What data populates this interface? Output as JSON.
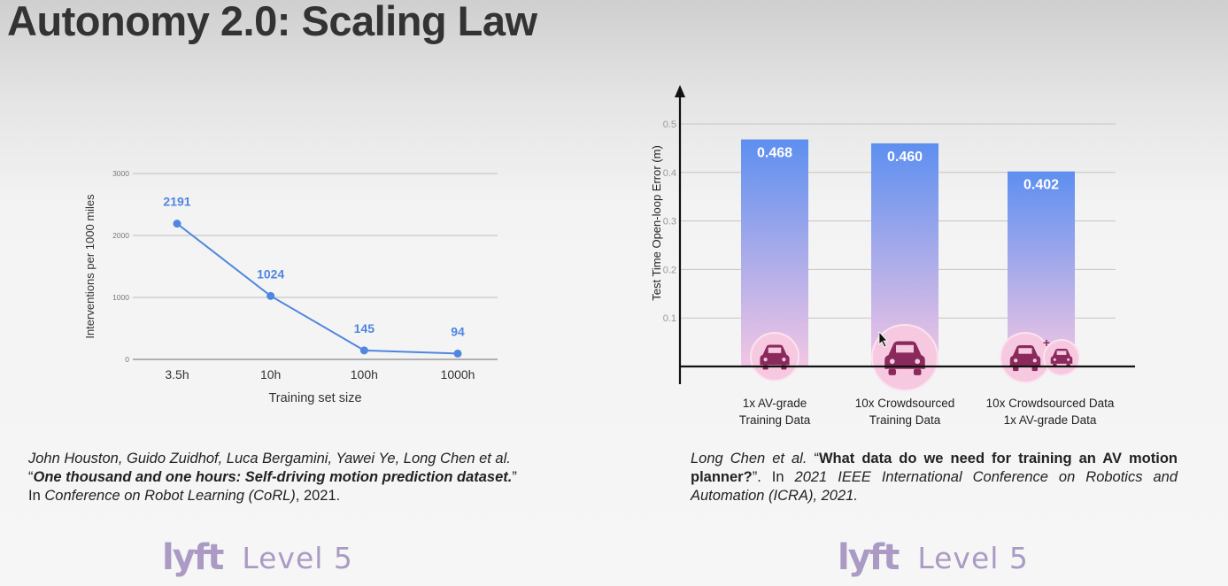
{
  "title": "Autonomy 2.0: Scaling Law",
  "chart_data": [
    {
      "type": "line",
      "title": "",
      "categories": [
        "3.5h",
        "10h",
        "100h",
        "1000h"
      ],
      "values": [
        2191,
        1024,
        145,
        94
      ],
      "data_labels": [
        "2191",
        "1024",
        "145",
        "94"
      ],
      "xlabel": "Training set size",
      "ylabel": "Interventions per 1000 miles",
      "ylim": [
        0,
        3000
      ],
      "yticks": [
        0,
        1000,
        2000,
        3000
      ],
      "grid": true,
      "color": "#4f86e0"
    },
    {
      "type": "bar",
      "title": "",
      "categories": [
        [
          "1x AV-grade",
          "Training Data"
        ],
        [
          "10x Crowdsourced",
          "Training Data"
        ],
        [
          "10x Crowdsourced Data",
          "1x AV-grade Data"
        ]
      ],
      "values": [
        0.468,
        0.46,
        0.402
      ],
      "data_labels": [
        "0.468",
        "0.460",
        "0.402"
      ],
      "xlabel": "",
      "ylabel": "Test Time Open-loop Error (m)",
      "ylim": [
        0,
        0.5
      ],
      "yticks": [
        0.1,
        0.2,
        0.3,
        0.4,
        0.5
      ],
      "ytick_labels": [
        "0.1",
        "0.2",
        "0.3",
        "0.4",
        "0.5"
      ],
      "grid": true,
      "bar_gradient": [
        "#5d8ff0",
        "#f2c6e4"
      ],
      "icons": [
        "car-icon",
        "car-icon",
        "car-plus-car-icon"
      ]
    }
  ],
  "citations": {
    "left": {
      "authors": "John Houston, Guido Zuidhof, Luca Bergamini, Yawei Ye, Long Chen et al.",
      "open_quote": "“",
      "paper_title": "One thousand and one hours: Self-driving motion prediction dataset.",
      "close_quote": "”",
      "venue_prefix": "In ",
      "venue": "Conference on Robot Learning (CoRL)",
      "venue_suffix": ", 2021."
    },
    "right": {
      "authors": "Long Chen et al. ",
      "open_quote": "“",
      "paper_title": "What data do we need for training an AV motion planner?",
      "close_quote": "”",
      "venue_prefix": ". In ",
      "venue": "2021 IEEE International Conference on Robotics and Automation (ICRA), 2021."
    }
  },
  "logos": {
    "left": {
      "brand": "lyft",
      "text": "Level 5"
    },
    "right": {
      "brand": "lyft",
      "text": "Level 5"
    }
  }
}
